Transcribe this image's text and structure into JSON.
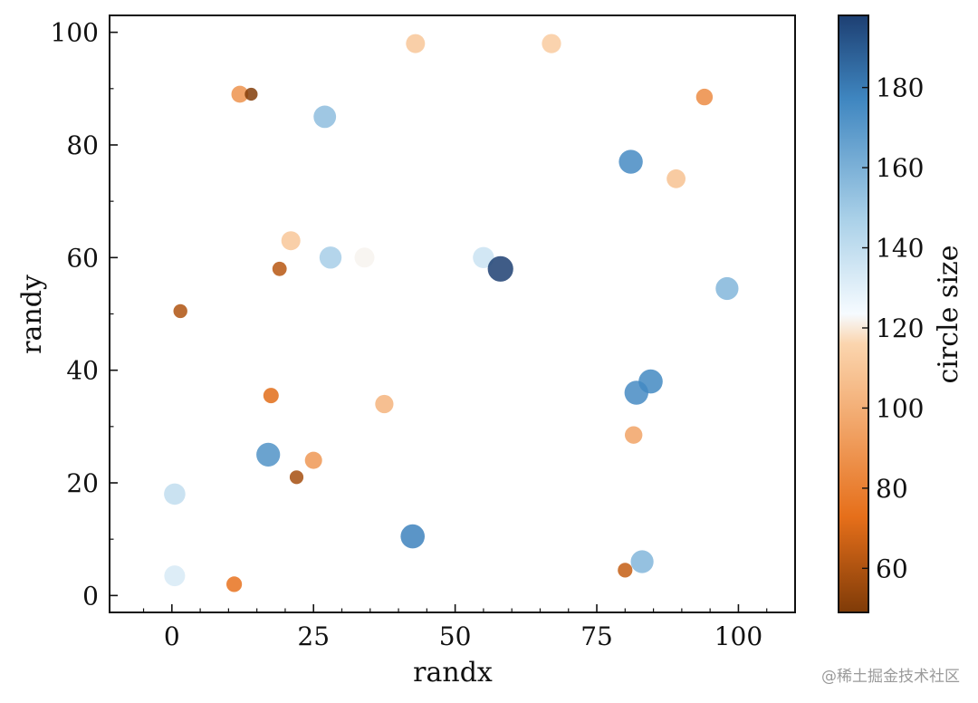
{
  "chart_data": {
    "type": "scatter",
    "xlabel": "randx",
    "ylabel": "randy",
    "xlim": [
      -11,
      110
    ],
    "ylim": [
      -3,
      103
    ],
    "xticks": [
      0,
      25,
      50,
      75,
      100
    ],
    "yticks": [
      0,
      20,
      40,
      60,
      80,
      100
    ],
    "colorbar": {
      "label": "circle size",
      "range": [
        49,
        198
      ],
      "ticks": [
        60,
        80,
        100,
        120,
        140,
        160,
        180
      ],
      "colormap": "diverging orange-white-blue",
      "colors": [
        "#7f3b08",
        "#e66f1a",
        "#fbd5ae",
        "#f6fbff",
        "#a9d0e8",
        "#3f86c0",
        "#1d3f72"
      ]
    },
    "points": [
      {
        "x": 12,
        "y": 89,
        "size": 88
      },
      {
        "x": 14,
        "y": 89,
        "size": 50
      },
      {
        "x": 27,
        "y": 85,
        "size": 155
      },
      {
        "x": 43,
        "y": 98,
        "size": 110
      },
      {
        "x": 67,
        "y": 98,
        "size": 112
      },
      {
        "x": 94,
        "y": 88.5,
        "size": 85
      },
      {
        "x": 81,
        "y": 77,
        "size": 175
      },
      {
        "x": 89,
        "y": 74,
        "size": 108
      },
      {
        "x": 21,
        "y": 63,
        "size": 110
      },
      {
        "x": 19,
        "y": 58,
        "size": 62
      },
      {
        "x": 28,
        "y": 60,
        "size": 148
      },
      {
        "x": 34,
        "y": 60,
        "size": 122
      },
      {
        "x": 55,
        "y": 60,
        "size": 137
      },
      {
        "x": 58,
        "y": 58,
        "size": 198
      },
      {
        "x": 98,
        "y": 54.5,
        "size": 158
      },
      {
        "x": 1.5,
        "y": 50.5,
        "size": 60
      },
      {
        "x": 17.5,
        "y": 35.5,
        "size": 72
      },
      {
        "x": 37.5,
        "y": 34,
        "size": 102
      },
      {
        "x": 82,
        "y": 36,
        "size": 175
      },
      {
        "x": 84.5,
        "y": 38,
        "size": 176
      },
      {
        "x": 81.5,
        "y": 28.5,
        "size": 95
      },
      {
        "x": 17,
        "y": 25,
        "size": 172
      },
      {
        "x": 25,
        "y": 24,
        "size": 90
      },
      {
        "x": 22,
        "y": 21,
        "size": 58
      },
      {
        "x": 0.5,
        "y": 18,
        "size": 140
      },
      {
        "x": 42.5,
        "y": 10.5,
        "size": 178
      },
      {
        "x": 83,
        "y": 6,
        "size": 158
      },
      {
        "x": 80,
        "y": 4.5,
        "size": 65
      },
      {
        "x": 0.5,
        "y": 3.5,
        "size": 133
      },
      {
        "x": 11,
        "y": 2,
        "size": 74
      }
    ]
  },
  "watermark": "@稀土掘金技术社区"
}
